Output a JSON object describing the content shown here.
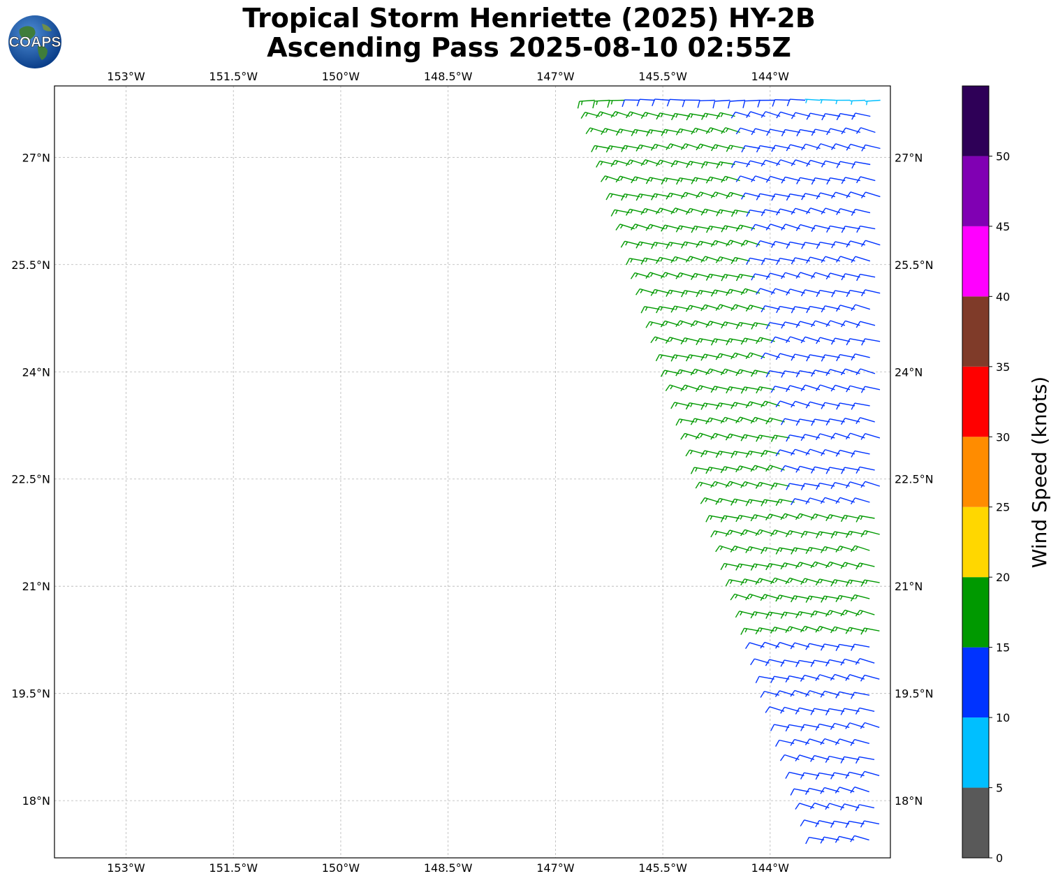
{
  "header": {
    "title_line1": "Tropical Storm Henriette (2025) HY-2B",
    "title_line2": "Ascending Pass 2025-08-10 02:55Z",
    "logo_text": "COAPS"
  },
  "chart_data": {
    "type": "scatter",
    "subtype": "wind-barbs-map",
    "title": "Tropical Storm Henriette (2025) HY-2B\nAscending Pass 2025-08-10 02:55Z",
    "xlim": [
      -154,
      -142.32
    ],
    "ylim": [
      17.2,
      28.0
    ],
    "xticks": [
      -153,
      -151.5,
      -150,
      -148.5,
      -147,
      -145.5,
      -144
    ],
    "xtick_labels": [
      "153°W",
      "151.5°W",
      "150°W",
      "148.5°W",
      "147°W",
      "145.5°W",
      "144°W"
    ],
    "yticks": [
      18,
      19.5,
      21,
      22.5,
      24,
      25.5,
      27
    ],
    "ytick_labels": [
      "18°N",
      "19.5°N",
      "21°N",
      "22.5°N",
      "24°N",
      "25.5°N",
      "27°N"
    ],
    "grid": true,
    "swath": {
      "left_edge_lon_at_top": -146.45,
      "left_edge_lon_at_bottom": -143.2,
      "lat_top": 27.8,
      "lat_bottom": 17.3
    },
    "wind_bands": [
      {
        "lat_min": 27.6,
        "lat_max": 28.0,
        "speed_west": 16,
        "speed_east": 8,
        "direction": "E"
      },
      {
        "lat_min": 22.0,
        "lat_max": 27.6,
        "speed_west": 17,
        "speed_east": 13,
        "direction": "ENE"
      },
      {
        "lat_min": 20.2,
        "lat_max": 22.0,
        "speed_west": 17,
        "speed_east": 17,
        "direction": "ENE"
      },
      {
        "lat_min": 17.2,
        "lat_max": 20.2,
        "speed_west": 13,
        "speed_east": 13,
        "direction": "ENE"
      }
    ],
    "colorbar": {
      "label": "Wind Speed (knots)",
      "ticks": [
        0,
        5,
        10,
        15,
        20,
        25,
        30,
        35,
        40,
        45,
        50
      ],
      "max": 55,
      "colors": [
        "#595959",
        "#00bfff",
        "#0033ff",
        "#009900",
        "#ffd700",
        "#ff8c00",
        "#ff0000",
        "#7f3b29",
        "#ff00ff",
        "#8000b3",
        "#2e0057"
      ]
    }
  }
}
